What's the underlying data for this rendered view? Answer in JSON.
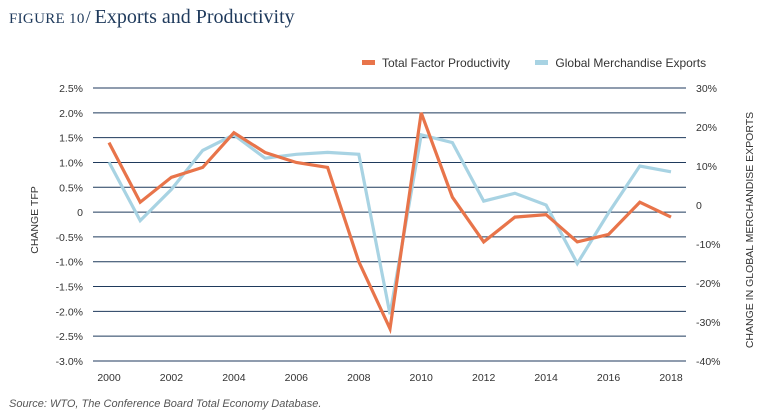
{
  "header": {
    "figure_label": "FIGURE 10",
    "separator": "/",
    "title": "Exports and Productivity"
  },
  "legend": {
    "items": [
      {
        "label": "Total Factor Productivity",
        "color": "#e8744a"
      },
      {
        "label": "Global Merchandise  Exports",
        "color": "#a8d3e3"
      }
    ]
  },
  "source": "Source: WTO, The Conference Board Total Economy  Database.",
  "chart_data": {
    "type": "line",
    "title": "Exports and Productivity",
    "x": [
      2000,
      2001,
      2002,
      2003,
      2004,
      2005,
      2006,
      2007,
      2008,
      2009,
      2010,
      2011,
      2012,
      2013,
      2014,
      2015,
      2016,
      2017,
      2018
    ],
    "x_ticks": [
      "2000",
      "2002",
      "2004",
      "2006",
      "2008",
      "2010",
      "2012",
      "2014",
      "2016",
      "2018"
    ],
    "ylabel_left": "CHANGE TFP",
    "ylabel_right": "CHANGE IN GLOBAL MERCHANDISE EXPORTS",
    "ylim_left": [
      -3.0,
      2.5
    ],
    "ylim_right": [
      -40,
      30
    ],
    "left_ticks": [
      "2.5%",
      "2.0%",
      "1.5%",
      "1.0%",
      "0.5%",
      "0",
      "-0.5%",
      "-1.0%",
      "-1.5%",
      "-2.0%",
      "-2.5%",
      "-3.0%"
    ],
    "right_ticks": [
      "30%",
      "20%",
      "10%",
      "0",
      "-10%",
      "-20%",
      "-30%",
      "-40%"
    ],
    "grid": true,
    "series": [
      {
        "name": "Total Factor Productivity",
        "axis": "left",
        "color": "#e8744a",
        "values": [
          1.4,
          0.2,
          0.7,
          0.9,
          1.6,
          1.2,
          1.0,
          0.9,
          -1.0,
          -2.35,
          2.0,
          0.3,
          -0.6,
          -0.1,
          -0.05,
          -0.6,
          -0.45,
          0.2,
          -0.1
        ]
      },
      {
        "name": "Global Merchandise  Exports",
        "axis": "right",
        "color": "#a8d3e3",
        "values": [
          11,
          -4,
          4,
          14,
          18,
          12,
          13,
          13.5,
          13,
          -28,
          18,
          16,
          1,
          3,
          0,
          -15,
          -2,
          10,
          8.5
        ]
      }
    ]
  }
}
